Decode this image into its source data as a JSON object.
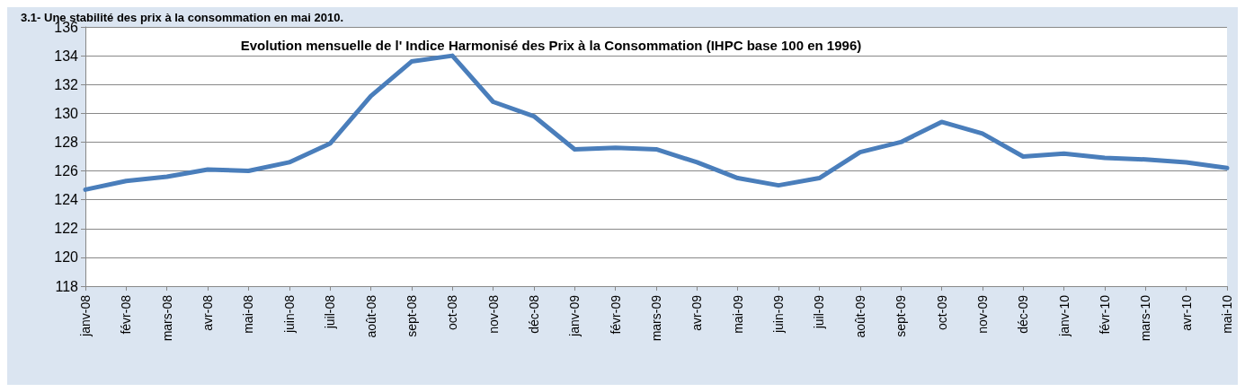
{
  "chart_data": {
    "type": "line",
    "title": "Evolution mensuelle de l' Indice Harmonisé des Prix à la Consommation (IHPC base 100 en 1996)",
    "annotations": [
      "3.1- Une stabilité des prix à la consommation en mai 2010."
    ],
    "categories": [
      "janv-08",
      "févr-08",
      "mars-08",
      "avr-08",
      "mai-08",
      "juin-08",
      "juil-08",
      "août-08",
      "sept-08",
      "oct-08",
      "nov-08",
      "déc-08",
      "janv-09",
      "févr-09",
      "mars-09",
      "avr-09",
      "mai-09",
      "juin-09",
      "juil-09",
      "août-09",
      "sept-09",
      "oct-09",
      "nov-09",
      "déc-09",
      "janv-10",
      "févr-10",
      "mars-10",
      "avr-10",
      "mai-10"
    ],
    "series": [
      {
        "color": "#4a7ebb",
        "values": [
          124.7,
          125.3,
          125.6,
          126.1,
          126.0,
          126.6,
          127.9,
          131.2,
          133.6,
          134.0,
          130.8,
          129.8,
          127.5,
          127.6,
          127.5,
          126.6,
          125.5,
          125.0,
          125.5,
          127.3,
          128.0,
          129.4,
          128.6,
          127.0,
          127.2,
          126.9,
          126.8,
          126.6,
          126.2
        ]
      }
    ],
    "ylim": [
      118,
      136
    ],
    "yticks": [
      118,
      120,
      122,
      124,
      126,
      128,
      130,
      132,
      134,
      136
    ],
    "grid": "y",
    "marker": "none",
    "line_style": "solid"
  }
}
